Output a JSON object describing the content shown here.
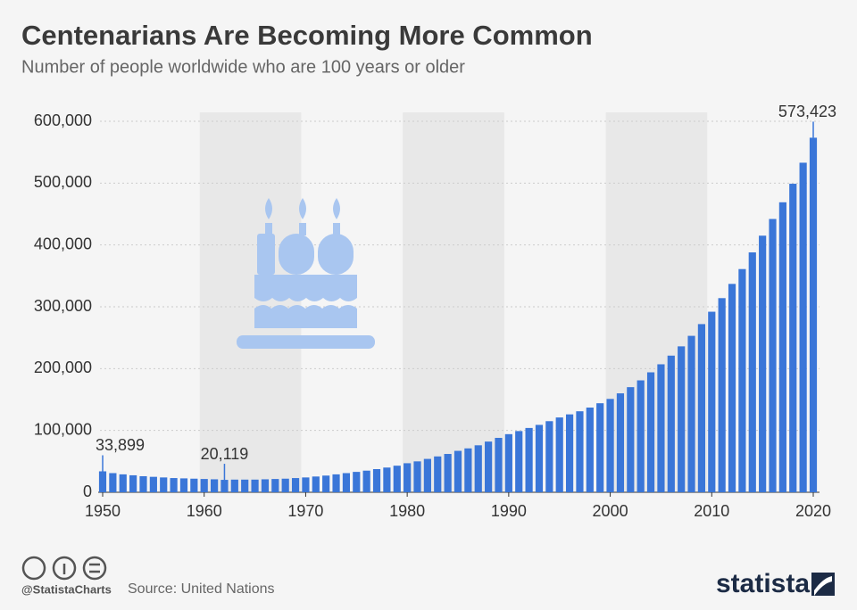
{
  "chart_data": {
    "type": "bar",
    "title": "Centenarians Are Becoming More Common",
    "subtitle": "Number of people worldwide who are 100 years or older",
    "x": [
      1950,
      1951,
      1952,
      1953,
      1954,
      1955,
      1956,
      1957,
      1958,
      1959,
      1960,
      1961,
      1962,
      1963,
      1964,
      1965,
      1966,
      1967,
      1968,
      1969,
      1970,
      1971,
      1972,
      1973,
      1974,
      1975,
      1976,
      1977,
      1978,
      1979,
      1980,
      1981,
      1982,
      1983,
      1984,
      1985,
      1986,
      1987,
      1988,
      1989,
      1990,
      1991,
      1992,
      1993,
      1994,
      1995,
      1996,
      1997,
      1998,
      1999,
      2000,
      2001,
      2002,
      2003,
      2004,
      2005,
      2006,
      2007,
      2008,
      2009,
      2010,
      2011,
      2012,
      2013,
      2014,
      2015,
      2016,
      2017,
      2018,
      2019,
      2020
    ],
    "values": [
      33899,
      31000,
      29000,
      27500,
      26000,
      25000,
      24000,
      23000,
      22500,
      22000,
      21500,
      21000,
      20119,
      20500,
      20500,
      20500,
      21000,
      21500,
      22000,
      23000,
      24000,
      25500,
      27000,
      29000,
      31000,
      33000,
      35000,
      37500,
      40000,
      43000,
      47000,
      50000,
      54000,
      58000,
      62000,
      67000,
      71000,
      76000,
      82000,
      88000,
      94000,
      99000,
      104000,
      109000,
      115000,
      121000,
      126000,
      131000,
      137000,
      144000,
      151000,
      160000,
      170000,
      181000,
      194000,
      207000,
      221000,
      236000,
      253000,
      272000,
      292000,
      314000,
      337000,
      361000,
      388000,
      415000,
      442000,
      469000,
      499000,
      533000,
      573423
    ],
    "value_labels": [
      "33,899",
      null,
      null,
      null,
      null,
      null,
      null,
      null,
      null,
      null,
      null,
      null,
      "20,119",
      null,
      null,
      null,
      null,
      null,
      null,
      null,
      null,
      null,
      null,
      null,
      null,
      null,
      null,
      null,
      null,
      null,
      null,
      null,
      null,
      null,
      null,
      null,
      null,
      null,
      null,
      null,
      null,
      null,
      null,
      null,
      null,
      null,
      null,
      null,
      null,
      null,
      null,
      null,
      null,
      null,
      null,
      null,
      null,
      null,
      null,
      null,
      null,
      null,
      null,
      null,
      null,
      null,
      null,
      null,
      null,
      null,
      "573,423"
    ],
    "color": "#3a76d8",
    "xlim": [
      1950,
      2020
    ],
    "xticks": [
      1950,
      1960,
      1970,
      1980,
      1990,
      2000,
      2010,
      2020
    ],
    "ylim": [
      0,
      600000
    ],
    "yticks": [
      0,
      {
        "value": 100000,
        "label": "100,000"
      },
      {
        "value": 200000,
        "label": "200,000"
      },
      {
        "value": 300000,
        "label": "300,000"
      },
      {
        "value": 400000,
        "label": "400,000"
      },
      {
        "value": 500000,
        "label": "500,000"
      },
      {
        "value": 600000,
        "label": "600,000"
      }
    ],
    "grid": true
  },
  "footer": {
    "handle": "@StatistaCharts",
    "source": "Source: United Nations",
    "brand": "statista"
  }
}
